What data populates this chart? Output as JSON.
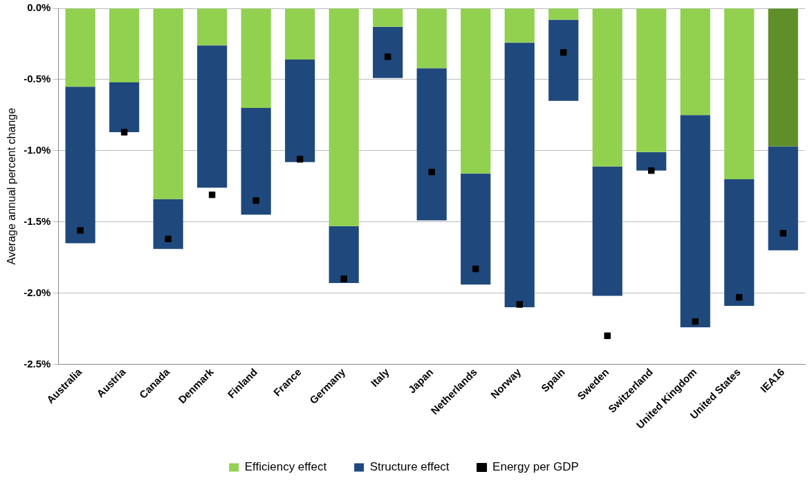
{
  "chart_data": {
    "type": "bar",
    "stacked": true,
    "ylabel": "Average annual percent change",
    "categories": [
      "Australia",
      "Austria",
      "Canada",
      "Denmark",
      "Finland",
      "France",
      "Germany",
      "Italy",
      "Japan",
      "Netherlands",
      "Norway",
      "Spain",
      "Sweden",
      "Switzerland",
      "United Kingdom",
      "United States",
      "IEA16"
    ],
    "series": [
      {
        "name": "Efficiency effect",
        "color": "#92d050",
        "colors": [
          "#92d050",
          "#92d050",
          "#92d050",
          "#92d050",
          "#92d050",
          "#92d050",
          "#92d050",
          "#92d050",
          "#92d050",
          "#92d050",
          "#92d050",
          "#92d050",
          "#92d050",
          "#92d050",
          "#92d050",
          "#92d050",
          "#5f8f29"
        ],
        "values": [
          -0.55,
          -0.52,
          -1.34,
          -0.26,
          -0.7,
          -0.36,
          -1.53,
          -0.13,
          -0.42,
          -1.16,
          -0.24,
          -0.08,
          -1.11,
          -1.01,
          -0.75,
          -1.2,
          -0.97
        ]
      },
      {
        "name": "Structure effect",
        "color": "#1f497d",
        "values": [
          -1.1,
          -0.35,
          -0.35,
          -1.0,
          -0.75,
          -0.72,
          -0.4,
          -0.36,
          -1.07,
          -0.78,
          -1.86,
          -0.57,
          -0.91,
          -0.13,
          -1.49,
          -0.89,
          -0.73
        ]
      },
      {
        "name": "Energy per GDP",
        "type": "scatter",
        "color": "#000000",
        "x": [
          "Australia",
          "Austria",
          "Canada",
          "Denmark",
          "Finland",
          "France",
          "Germany",
          "Italy",
          "Japan",
          "Netherlands",
          "Norway",
          "Spain",
          "Sweden",
          "Switzerland",
          "United Kingdom",
          "United States",
          "IEA16"
        ],
        "values": [
          -1.56,
          -0.87,
          -1.62,
          -1.31,
          -1.35,
          -1.06,
          -1.9,
          -0.34,
          -1.15,
          -1.83,
          -2.08,
          -0.31,
          -2.3,
          -1.14,
          -2.2,
          -2.03,
          -1.58
        ]
      }
    ],
    "ylim": [
      -2.5,
      0
    ],
    "yticks": [
      {
        "value": -2.5,
        "label": "-2.5%"
      },
      {
        "value": -2.0,
        "label": "-2.0%"
      },
      {
        "value": -1.5,
        "label": "-1.5%"
      },
      {
        "value": -1.0,
        "label": "-1.0%"
      },
      {
        "value": -0.5,
        "label": "-0.5%"
      },
      {
        "value": 0,
        "label": "0.0%"
      }
    ],
    "grid": "y",
    "legend": "bottom",
    "marker": "square"
  }
}
